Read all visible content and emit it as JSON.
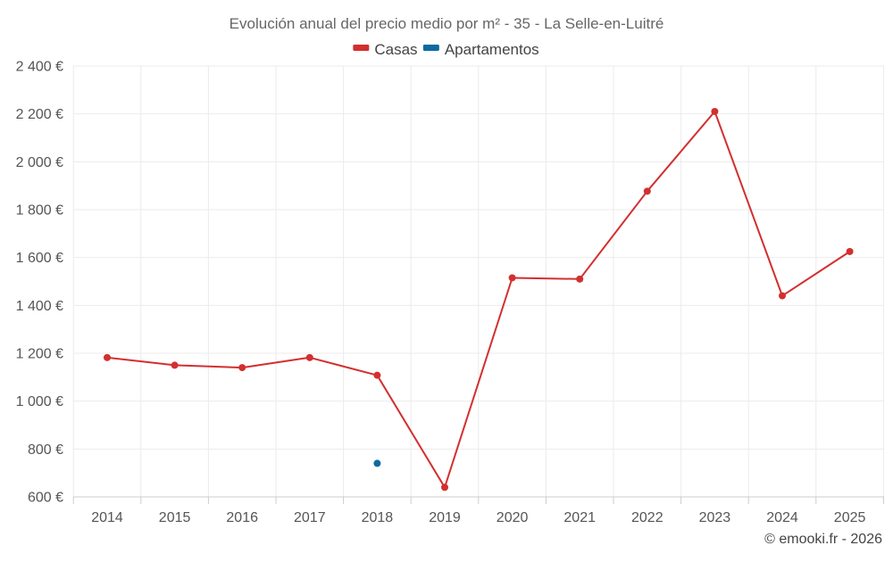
{
  "chart_data": {
    "type": "line",
    "title": "Evolución anual del precio medio por m² - 35 - La Selle-en-Luitré",
    "xlabel": "",
    "ylabel": "",
    "categories": [
      "2014",
      "2015",
      "2016",
      "2017",
      "2018",
      "2019",
      "2020",
      "2021",
      "2022",
      "2023",
      "2024",
      "2025"
    ],
    "ylim": [
      600,
      2400
    ],
    "yticks": [
      600,
      800,
      1000,
      1200,
      1400,
      1600,
      1800,
      2000,
      2200,
      2400
    ],
    "ytick_labels": [
      "600 €",
      "800 €",
      "1 000 €",
      "1 200 €",
      "1 400 €",
      "1 600 €",
      "1 800 €",
      "2 000 €",
      "2 200 €",
      "2 400 €"
    ],
    "grid": true,
    "legend_position": "top-center",
    "series": [
      {
        "name": "Casas",
        "color": "#d32f2f",
        "values": [
          1182,
          1150,
          1140,
          1182,
          1108,
          640,
          1515,
          1510,
          1877,
          2210,
          1440,
          1625
        ]
      },
      {
        "name": "Apartamentos",
        "color": "#0d6aa0",
        "values": [
          null,
          null,
          null,
          null,
          740,
          null,
          null,
          null,
          null,
          null,
          null,
          null
        ]
      }
    ]
  },
  "credit": "© emooki.fr - 2026"
}
